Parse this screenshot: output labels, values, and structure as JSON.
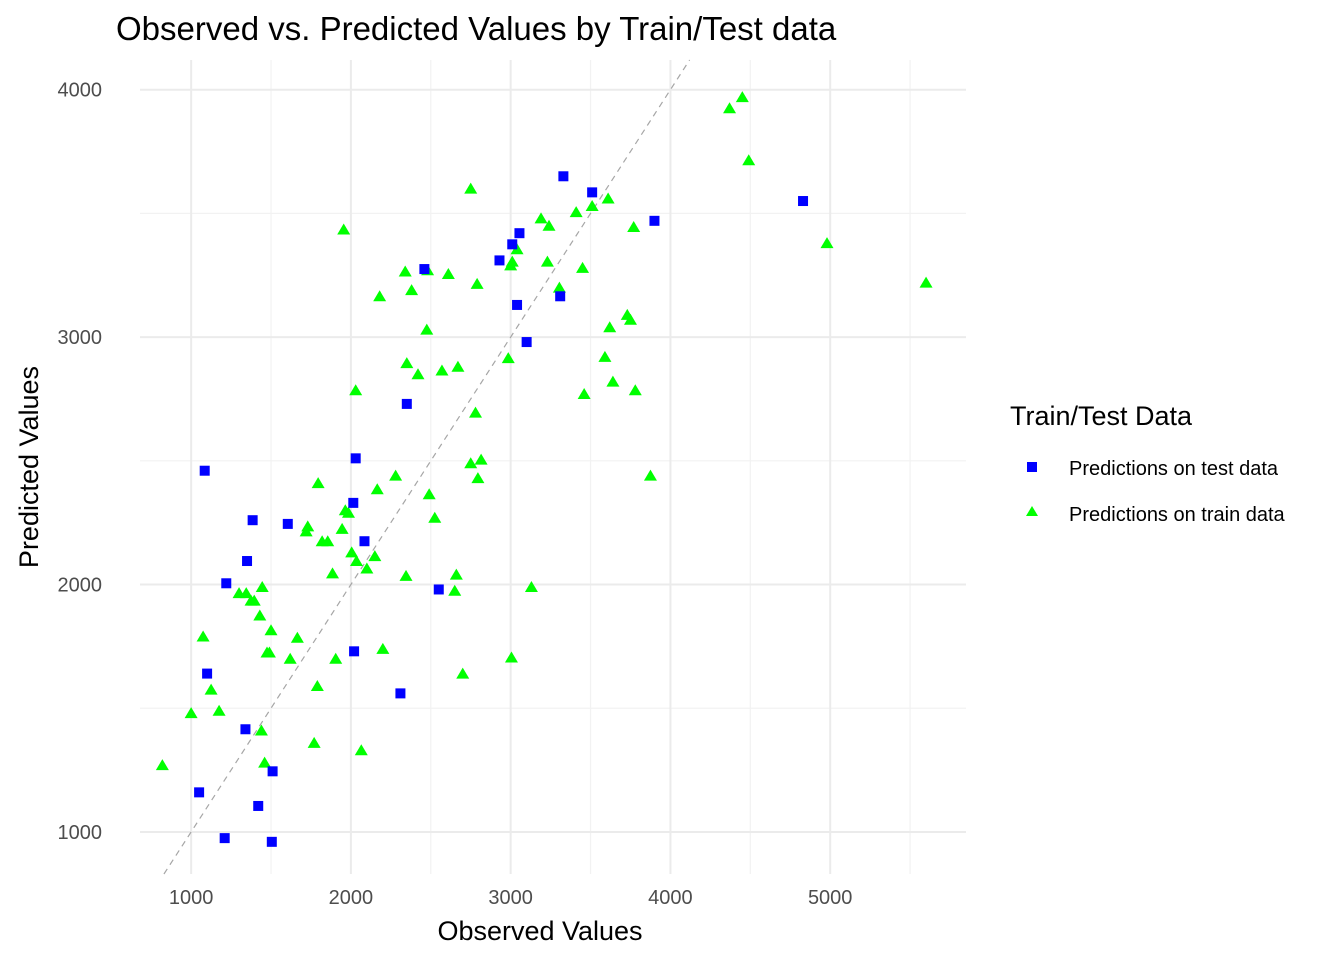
{
  "chart_data": {
    "type": "scatter",
    "title": "Observed vs. Predicted Values by Train/Test data",
    "xlabel": "Observed Values",
    "ylabel": "Predicted Values",
    "xlim": [
      680,
      5850
    ],
    "ylim": [
      830,
      4120
    ],
    "x_ticks": [
      1000,
      2000,
      3000,
      4000,
      5000
    ],
    "x_tick_labels": [
      "1000",
      "2000",
      "3000",
      "4000",
      "5000"
    ],
    "y_ticks": [
      1000,
      2000,
      3000,
      4000
    ],
    "y_tick_labels": [
      "1000",
      "2000",
      "3000",
      "4000"
    ],
    "grid": true,
    "reference_line": "y = x (dashed)",
    "legend": {
      "title": "Train/Test Data",
      "position": "right"
    },
    "series": [
      {
        "name": "Predictions on test data",
        "color": "#0000ff",
        "marker": "square",
        "points": [
          [
            1085,
            2460
          ],
          [
            1100,
            1640
          ],
          [
            1050,
            1160
          ],
          [
            1210,
            975
          ],
          [
            1220,
            2005
          ],
          [
            1340,
            1415
          ],
          [
            1350,
            2095
          ],
          [
            1385,
            2260
          ],
          [
            1420,
            1105
          ],
          [
            1505,
            960
          ],
          [
            1510,
            1245
          ],
          [
            1605,
            2245
          ],
          [
            2020,
            1730
          ],
          [
            2030,
            2510
          ],
          [
            2015,
            2330
          ],
          [
            2085,
            2175
          ],
          [
            2310,
            1560
          ],
          [
            2350,
            2730
          ],
          [
            2460,
            3275
          ],
          [
            2550,
            1980
          ],
          [
            2930,
            3310
          ],
          [
            3010,
            3375
          ],
          [
            3040,
            3130
          ],
          [
            3055,
            3420
          ],
          [
            3100,
            2980
          ],
          [
            3310,
            3165
          ],
          [
            3330,
            3650
          ],
          [
            3510,
            3585
          ],
          [
            3900,
            3470
          ],
          [
            4830,
            3550
          ]
        ]
      },
      {
        "name": "Predictions on train data",
        "color": "#00ff00",
        "marker": "triangle",
        "points": [
          [
            820,
            1270
          ],
          [
            1000,
            1480
          ],
          [
            1075,
            1790
          ],
          [
            1125,
            1575
          ],
          [
            1175,
            1490
          ],
          [
            1300,
            1965
          ],
          [
            1345,
            1965
          ],
          [
            1375,
            1935
          ],
          [
            1395,
            1935
          ],
          [
            1430,
            1875
          ],
          [
            1445,
            1990
          ],
          [
            1440,
            1410
          ],
          [
            1460,
            1280
          ],
          [
            1475,
            1725
          ],
          [
            1490,
            1725
          ],
          [
            1500,
            1815
          ],
          [
            1620,
            1700
          ],
          [
            1665,
            1785
          ],
          [
            1720,
            2215
          ],
          [
            1730,
            2235
          ],
          [
            1770,
            1360
          ],
          [
            1790,
            1590
          ],
          [
            1795,
            2410
          ],
          [
            1820,
            2175
          ],
          [
            1855,
            2175
          ],
          [
            1885,
            2045
          ],
          [
            1905,
            1700
          ],
          [
            1945,
            2225
          ],
          [
            1955,
            3435
          ],
          [
            1965,
            2300
          ],
          [
            1985,
            2290
          ],
          [
            2005,
            2130
          ],
          [
            2030,
            2785
          ],
          [
            2035,
            2095
          ],
          [
            2065,
            1330
          ],
          [
            2100,
            2065
          ],
          [
            2150,
            2115
          ],
          [
            2165,
            2385
          ],
          [
            2180,
            3165
          ],
          [
            2200,
            1740
          ],
          [
            2280,
            2440
          ],
          [
            2340,
            3265
          ],
          [
            2345,
            2035
          ],
          [
            2350,
            2895
          ],
          [
            2380,
            3190
          ],
          [
            2420,
            2850
          ],
          [
            2475,
            3030
          ],
          [
            2480,
            3270
          ],
          [
            2490,
            2365
          ],
          [
            2525,
            2270
          ],
          [
            2570,
            2865
          ],
          [
            2610,
            3255
          ],
          [
            2650,
            1975
          ],
          [
            2660,
            2040
          ],
          [
            2670,
            2880
          ],
          [
            2700,
            1640
          ],
          [
            2750,
            2490
          ],
          [
            2750,
            3600
          ],
          [
            2780,
            2695
          ],
          [
            2790,
            3215
          ],
          [
            2795,
            2430
          ],
          [
            2815,
            2505
          ],
          [
            2985,
            2915
          ],
          [
            3000,
            3290
          ],
          [
            3005,
            1705
          ],
          [
            3010,
            3305
          ],
          [
            3040,
            3355
          ],
          [
            3130,
            1990
          ],
          [
            3190,
            3480
          ],
          [
            3230,
            3305
          ],
          [
            3240,
            3450
          ],
          [
            3305,
            3200
          ],
          [
            3410,
            3505
          ],
          [
            3450,
            3280
          ],
          [
            3460,
            2770
          ],
          [
            3510,
            3530
          ],
          [
            3590,
            2920
          ],
          [
            3610,
            3560
          ],
          [
            3620,
            3040
          ],
          [
            3640,
            2820
          ],
          [
            3730,
            3090
          ],
          [
            3750,
            3070
          ],
          [
            3770,
            3445
          ],
          [
            3780,
            2785
          ],
          [
            3875,
            2440
          ],
          [
            4370,
            3925
          ],
          [
            4450,
            3970
          ],
          [
            4490,
            3715
          ],
          [
            4980,
            3380
          ],
          [
            5600,
            3220
          ]
        ]
      }
    ]
  }
}
